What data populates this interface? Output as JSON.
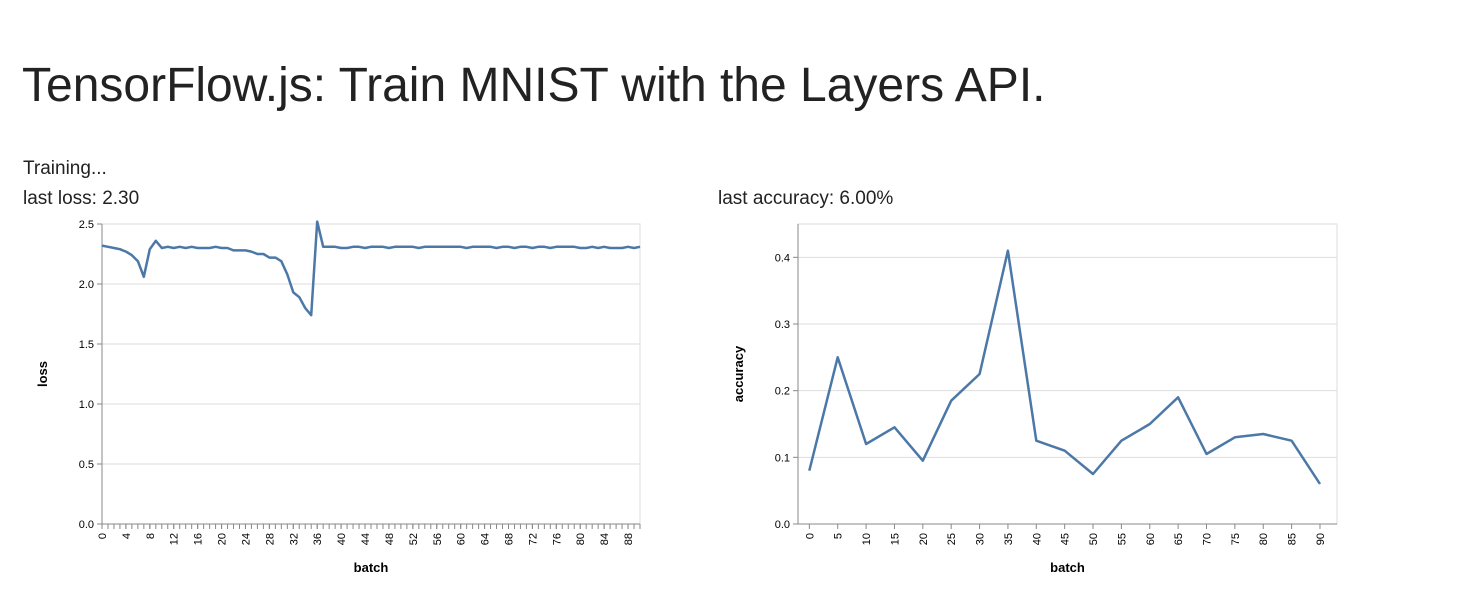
{
  "page": {
    "title": "TensorFlow.js: Train MNIST with the Layers API.",
    "status": "Training...",
    "loss_summary": "last loss: 2.30",
    "accuracy_summary": "last accuracy: 6.00%"
  },
  "colors": {
    "line": "#4c78a8",
    "grid": "#dddddd",
    "axis": "#888888"
  },
  "chart_data": [
    {
      "type": "line",
      "xlabel": "batch",
      "ylabel": "loss",
      "ylim": [
        0,
        2.5
      ],
      "yticks": [
        0.0,
        0.5,
        1.0,
        1.5,
        2.0,
        2.5
      ],
      "ytick_labels": [
        "0.0",
        "0.5",
        "1.0",
        "1.5",
        "2.0",
        "2.5"
      ],
      "xlim": [
        0,
        90
      ],
      "xticks": [
        0,
        4,
        8,
        12,
        16,
        20,
        24,
        28,
        32,
        36,
        40,
        44,
        48,
        52,
        56,
        60,
        64,
        68,
        72,
        76,
        80,
        84,
        88
      ],
      "xtick_labels": [
        "0",
        "4",
        "8",
        "12",
        "16",
        "20",
        "24",
        "28",
        "32",
        "36",
        "40",
        "44",
        "48",
        "52",
        "56",
        "60",
        "64",
        "68",
        "72",
        "76",
        "80",
        "84",
        "88"
      ],
      "grid": true,
      "x": [
        0,
        1,
        2,
        3,
        4,
        5,
        6,
        7,
        8,
        9,
        10,
        11,
        12,
        13,
        14,
        15,
        16,
        17,
        18,
        19,
        20,
        21,
        22,
        23,
        24,
        25,
        26,
        27,
        28,
        29,
        30,
        31,
        32,
        33,
        34,
        35,
        36,
        37,
        38,
        39,
        40,
        41,
        42,
        43,
        44,
        45,
        46,
        47,
        48,
        49,
        50,
        51,
        52,
        53,
        54,
        55,
        56,
        57,
        58,
        59,
        60,
        61,
        62,
        63,
        64,
        65,
        66,
        67,
        68,
        69,
        70,
        71,
        72,
        73,
        74,
        75,
        76,
        77,
        78,
        79,
        80,
        81,
        82,
        83,
        84,
        85,
        86,
        87,
        88,
        89,
        90
      ],
      "values": [
        2.32,
        2.31,
        2.3,
        2.29,
        2.27,
        2.24,
        2.19,
        2.06,
        2.29,
        2.36,
        2.3,
        2.31,
        2.3,
        2.31,
        2.3,
        2.31,
        2.3,
        2.3,
        2.3,
        2.31,
        2.3,
        2.3,
        2.28,
        2.28,
        2.28,
        2.27,
        2.25,
        2.25,
        2.22,
        2.22,
        2.19,
        2.08,
        1.93,
        1.89,
        1.8,
        1.74,
        2.52,
        2.31,
        2.31,
        2.31,
        2.3,
        2.3,
        2.31,
        2.31,
        2.3,
        2.31,
        2.31,
        2.31,
        2.3,
        2.31,
        2.31,
        2.31,
        2.31,
        2.3,
        2.31,
        2.31,
        2.31,
        2.31,
        2.31,
        2.31,
        2.31,
        2.3,
        2.31,
        2.31,
        2.31,
        2.31,
        2.3,
        2.31,
        2.31,
        2.3,
        2.31,
        2.31,
        2.3,
        2.31,
        2.31,
        2.3,
        2.31,
        2.31,
        2.31,
        2.31,
        2.3,
        2.3,
        2.31,
        2.3,
        2.31,
        2.3,
        2.3,
        2.3,
        2.31,
        2.3,
        2.31
      ]
    },
    {
      "type": "line",
      "xlabel": "batch",
      "ylabel": "accuracy",
      "ylim": [
        0,
        0.45
      ],
      "yticks": [
        0.0,
        0.1,
        0.2,
        0.3,
        0.4
      ],
      "ytick_labels": [
        "0.0",
        "0.1",
        "0.2",
        "0.3",
        "0.4"
      ],
      "xlim": [
        -2,
        93
      ],
      "xticks": [
        0,
        5,
        10,
        15,
        20,
        25,
        30,
        35,
        40,
        45,
        50,
        55,
        60,
        65,
        70,
        75,
        80,
        85,
        90
      ],
      "xtick_labels": [
        "0",
        "5",
        "10",
        "15",
        "20",
        "25",
        "30",
        "35",
        "40",
        "45",
        "50",
        "55",
        "60",
        "65",
        "70",
        "75",
        "80",
        "85",
        "90"
      ],
      "grid": true,
      "x": [
        0,
        5,
        10,
        15,
        20,
        25,
        30,
        35,
        40,
        45,
        50,
        55,
        60,
        65,
        70,
        75,
        80,
        85,
        90
      ],
      "values": [
        0.08,
        0.25,
        0.12,
        0.145,
        0.095,
        0.185,
        0.225,
        0.41,
        0.125,
        0.11,
        0.075,
        0.125,
        0.15,
        0.19,
        0.105,
        0.13,
        0.135,
        0.125,
        0.06
      ]
    }
  ]
}
